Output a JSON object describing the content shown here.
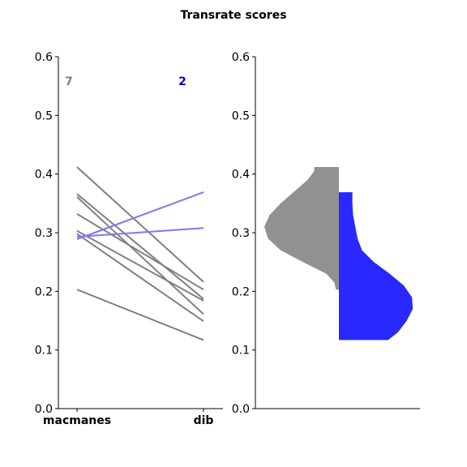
{
  "title": "Transrate scores",
  "colors": {
    "gray": "#808080",
    "blue": "#7b7bf0",
    "violin_gray": "#919191",
    "violin_blue": "#2828ff",
    "count_gray": "#808080",
    "count_blue": "#0000cc"
  },
  "chart_data": [
    {
      "type": "line",
      "title": "Transrate scores",
      "categories": [
        "macmanes",
        "dib"
      ],
      "ylim": [
        0,
        0.6
      ],
      "yticks": [
        "0.0",
        "0.1",
        "0.2",
        "0.3",
        "0.4",
        "0.5",
        "0.6"
      ],
      "counts": [
        {
          "label": "7",
          "color": "#808080"
        },
        {
          "label": "2",
          "color": "#0000cc"
        }
      ],
      "series": [
        {
          "values": [
            0.412,
            0.216
          ],
          "color": "#808080"
        },
        {
          "values": [
            0.366,
            0.187
          ],
          "color": "#808080"
        },
        {
          "values": [
            0.361,
            0.161
          ],
          "color": "#808080"
        },
        {
          "values": [
            0.332,
            0.203
          ],
          "color": "#808080"
        },
        {
          "values": [
            0.303,
            0.184
          ],
          "color": "#808080"
        },
        {
          "values": [
            0.298,
            0.149
          ],
          "color": "#808080"
        },
        {
          "values": [
            0.203,
            0.117
          ],
          "color": "#808080"
        },
        {
          "values": [
            0.289,
            0.369
          ],
          "color": "#7b7bf0"
        },
        {
          "values": [
            0.293,
            0.308
          ],
          "color": "#7b7bf0"
        }
      ]
    },
    {
      "type": "violin",
      "ylim": [
        0,
        0.6
      ],
      "yticks": [
        "0.0",
        "0.1",
        "0.2",
        "0.3",
        "0.4",
        "0.5",
        "0.6"
      ],
      "groups": [
        {
          "name": "macmanes",
          "side": "left",
          "color": "#919191",
          "range": [
            0.203,
            0.412
          ],
          "profile": [
            [
              0.203,
              0.04
            ],
            [
              0.215,
              0.06
            ],
            [
              0.23,
              0.17
            ],
            [
              0.25,
              0.48
            ],
            [
              0.27,
              0.78
            ],
            [
              0.29,
              0.95
            ],
            [
              0.31,
              1.0
            ],
            [
              0.33,
              0.93
            ],
            [
              0.35,
              0.78
            ],
            [
              0.37,
              0.6
            ],
            [
              0.39,
              0.42
            ],
            [
              0.405,
              0.33
            ],
            [
              0.412,
              0.33
            ]
          ]
        },
        {
          "name": "dib",
          "side": "right",
          "color": "#2828ff",
          "range": [
            0.117,
            0.369
          ],
          "profile": [
            [
              0.117,
              0.66
            ],
            [
              0.13,
              0.79
            ],
            [
              0.15,
              0.91
            ],
            [
              0.17,
              0.99
            ],
            [
              0.19,
              0.98
            ],
            [
              0.21,
              0.87
            ],
            [
              0.23,
              0.68
            ],
            [
              0.25,
              0.47
            ],
            [
              0.27,
              0.31
            ],
            [
              0.29,
              0.25
            ],
            [
              0.31,
              0.22
            ],
            [
              0.33,
              0.19
            ],
            [
              0.35,
              0.18
            ],
            [
              0.369,
              0.18
            ]
          ]
        }
      ]
    }
  ]
}
